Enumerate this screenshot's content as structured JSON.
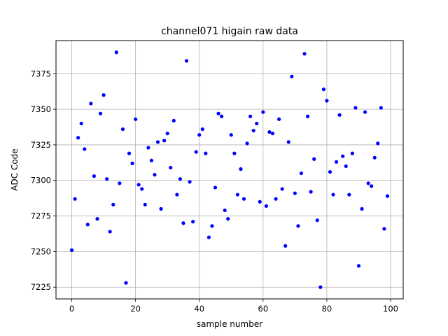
{
  "chart_data": {
    "type": "scatter",
    "title": "channel071 higain raw data",
    "xlabel": "sample number",
    "ylabel": "ADC Code",
    "xlim": [
      -4.95,
      103.95
    ],
    "ylim": [
      7216.75,
      7398.25
    ],
    "xticks": [
      0,
      20,
      40,
      60,
      80,
      100
    ],
    "yticks": [
      7225,
      7250,
      7275,
      7300,
      7325,
      7350,
      7375
    ],
    "grid": true,
    "marker_color": "#0000ff",
    "x": [
      0,
      1,
      2,
      3,
      4,
      5,
      6,
      7,
      8,
      9,
      10,
      11,
      12,
      13,
      14,
      15,
      16,
      17,
      18,
      19,
      20,
      21,
      22,
      23,
      24,
      25,
      26,
      27,
      28,
      29,
      30,
      31,
      32,
      33,
      34,
      35,
      36,
      37,
      38,
      39,
      40,
      41,
      42,
      43,
      44,
      45,
      46,
      47,
      48,
      49,
      50,
      51,
      52,
      53,
      54,
      55,
      56,
      57,
      58,
      59,
      60,
      61,
      62,
      63,
      64,
      65,
      66,
      67,
      68,
      69,
      70,
      71,
      72,
      73,
      74,
      75,
      76,
      77,
      78,
      79,
      80,
      81,
      82,
      83,
      84,
      85,
      86,
      87,
      88,
      89,
      90,
      91,
      92,
      93,
      94,
      95,
      96,
      97,
      98,
      99
    ],
    "y": [
      7251,
      7287,
      7330,
      7340,
      7322,
      7269,
      7354,
      7303,
      7273,
      7347,
      7360,
      7301,
      7264,
      7283,
      7390,
      7298,
      7336,
      7228,
      7319,
      7312,
      7343,
      7297,
      7294,
      7283,
      7323,
      7314,
      7304,
      7327,
      7280,
      7328,
      7333,
      7309,
      7342,
      7290,
      7301,
      7270,
      7384,
      7299,
      7271,
      7320,
      7332,
      7336,
      7319,
      7260,
      7268,
      7295,
      7347,
      7345,
      7279,
      7273,
      7332,
      7319,
      7290,
      7308,
      7287,
      7326,
      7345,
      7335,
      7340,
      7285,
      7348,
      7282,
      7334,
      7333,
      7287,
      7343,
      7294,
      7254,
      7327,
      7373,
      7291,
      7268,
      7305,
      7389,
      7345,
      7292,
      7315,
      7272,
      7225,
      7364,
      7356,
      7306,
      7290,
      7313,
      7346,
      7317,
      7310,
      7290,
      7319,
      7351,
      7240,
      7280,
      7348,
      7298,
      7296,
      7316,
      7326,
      7351,
      7266,
      7289
    ]
  }
}
